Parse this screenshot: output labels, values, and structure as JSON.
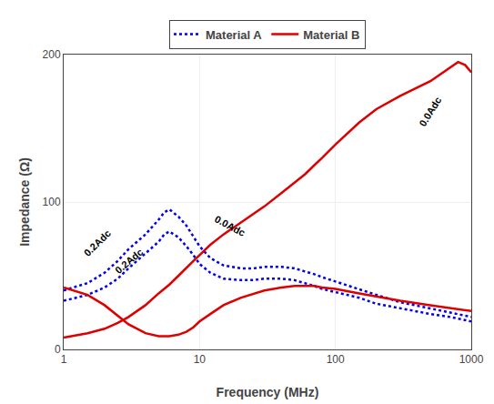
{
  "chart_data": {
    "type": "line",
    "xlabel": "Frequency (MHz)",
    "ylabel": "Impedance (Ω)",
    "log": "x",
    "xlim": [
      1,
      1000
    ],
    "ylim": [
      0,
      200
    ],
    "xticks": [
      1,
      10,
      100,
      1000
    ],
    "yticks": [
      0,
      100,
      200
    ],
    "grid": true,
    "legend": "top",
    "series": [
      {
        "name": "Material A",
        "color": "#0000EE",
        "line_style": "dotted",
        "x": [
          1,
          1.5,
          2,
          2.5,
          3,
          4,
          5,
          5.5,
          6,
          7,
          8,
          9,
          10,
          12,
          15,
          20,
          25,
          30,
          40,
          50,
          60,
          70,
          80,
          100,
          150,
          200,
          300,
          500,
          700,
          1000
        ],
        "values": [
          40,
          45,
          52,
          60,
          68,
          78,
          88,
          93,
          95,
          90,
          84,
          77,
          70,
          62,
          57,
          55,
          55,
          56,
          56,
          55,
          53,
          51,
          49,
          46,
          41,
          37,
          32,
          28,
          25,
          22
        ]
      },
      {
        "name": "Material A",
        "color": "#0000EE",
        "line_style": "dotted",
        "x": [
          1,
          1.5,
          2,
          2.5,
          3,
          4,
          5,
          5.5,
          6,
          7,
          8,
          9,
          10,
          12,
          15,
          20,
          25,
          30,
          40,
          50,
          60,
          70,
          80,
          100,
          150,
          200,
          300,
          500,
          700,
          1000
        ],
        "values": [
          33,
          37,
          42,
          48,
          55,
          65,
          73,
          78,
          80,
          76,
          70,
          64,
          58,
          52,
          48,
          47,
          47,
          48,
          48,
          47,
          45,
          43,
          41,
          39,
          35,
          31,
          28,
          24,
          22,
          19
        ]
      },
      {
        "name": "Material B",
        "color": "#DD0000",
        "line_style": "solid",
        "x": [
          1,
          1.5,
          2,
          2.5,
          3,
          4,
          5,
          6,
          7,
          8,
          9,
          10,
          12,
          15,
          20,
          25,
          30,
          40,
          50,
          60,
          70,
          80,
          100,
          150,
          200,
          300,
          500,
          700,
          750,
          800,
          900,
          1000
        ],
        "values": [
          8,
          11,
          14,
          18,
          22,
          30,
          38,
          44,
          50,
          55,
          60,
          64,
          71,
          78,
          86,
          92,
          97,
          106,
          113,
          119,
          125,
          130,
          139,
          154,
          163,
          172,
          182,
          191,
          193,
          195,
          193,
          188
        ]
      },
      {
        "name": "Material B",
        "color": "#DD0000",
        "line_style": "solid",
        "x": [
          1,
          1.5,
          2,
          2.5,
          3,
          4,
          5,
          5.5,
          6,
          7,
          8,
          9,
          10,
          12,
          15,
          20,
          25,
          30,
          40,
          50,
          60,
          70,
          80,
          100,
          150,
          200,
          300,
          500,
          700,
          1000
        ],
        "values": [
          42,
          37,
          30,
          23,
          17,
          11,
          9,
          9,
          9,
          10,
          12,
          15,
          19,
          24,
          30,
          35,
          38,
          40,
          42,
          43,
          43,
          43,
          42,
          41,
          38,
          36,
          33,
          30,
          28,
          26
        ]
      }
    ],
    "annotations": [
      {
        "text": "0.2Adc",
        "x": 1.3,
        "y": 60
      },
      {
        "text": "0.2Adc",
        "x": 2.2,
        "y": 48
      },
      {
        "text": "0.0Adc",
        "x": 12,
        "y": 74
      },
      {
        "text": "0.0Adc",
        "x": 380,
        "y": 148
      }
    ]
  }
}
